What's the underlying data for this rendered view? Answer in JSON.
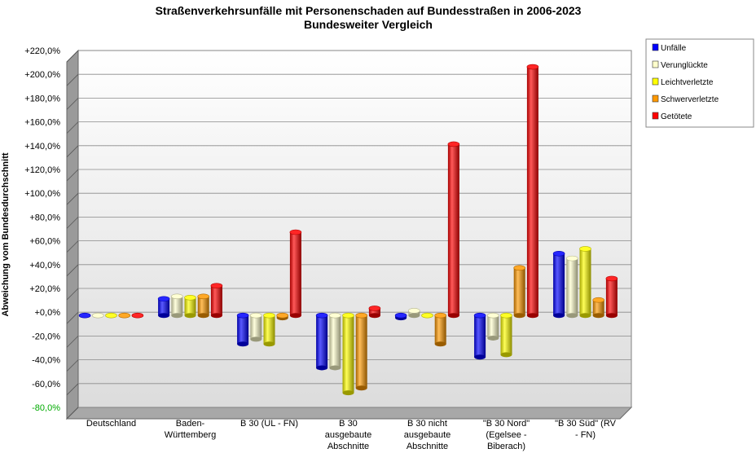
{
  "chart_data": {
    "type": "bar",
    "title": "Straßenverkehrsunfälle mit Personenschaden auf Bundesstraßen in 2006-2023",
    "subtitle": "Bundesweiter Vergleich",
    "xlabel": "",
    "ylabel": "Abweichung vom Bundesdurchschnitt",
    "ylim": [
      -80,
      220
    ],
    "ytick_labels": [
      "+220,0%",
      "+200,0%",
      "+180,0%",
      "+160,0%",
      "+140,0%",
      "+120,0%",
      "+100,0%",
      "+80,0%",
      "+60,0%",
      "+40,0%",
      "+20,0%",
      "+0,0%",
      "-20,0%",
      "-40,0%",
      "-60,0%",
      "-80,0%"
    ],
    "categories": [
      [
        "Deutschland"
      ],
      [
        "Baden-",
        "Württemberg"
      ],
      [
        "B 30 (UL - FN)"
      ],
      [
        "B 30",
        "ausgebaute",
        "Abschnitte"
      ],
      [
        "B 30 nicht",
        "ausgebaute",
        "Abschnitte"
      ],
      [
        "\"B 30 Nord\"",
        "(Egelsee -",
        "Biberach)"
      ],
      [
        "\"B 30 Süd\" (RV",
        "- FN)"
      ]
    ],
    "series": [
      {
        "name": "Unfälle",
        "color": "#0000ff",
        "values": [
          0,
          14,
          -24,
          -44,
          -2,
          -35,
          52
        ]
      },
      {
        "name": "Verunglückte",
        "color": "#ffffcc",
        "values": [
          0,
          16,
          -20,
          -44,
          4,
          -19,
          48
        ]
      },
      {
        "name": "Leichtverletzte",
        "color": "#ffff00",
        "values": [
          0,
          15,
          -24,
          -65,
          0,
          -33,
          56
        ]
      },
      {
        "name": "Schwerverletzte",
        "color": "#ff9900",
        "values": [
          0,
          16,
          -2,
          -61,
          -24,
          40,
          13
        ]
      },
      {
        "name": "Getötete",
        "color": "#ff0000",
        "values": [
          0,
          25,
          70,
          6,
          144,
          209,
          31
        ]
      }
    ],
    "grid": true,
    "legend_position": "top-right"
  }
}
